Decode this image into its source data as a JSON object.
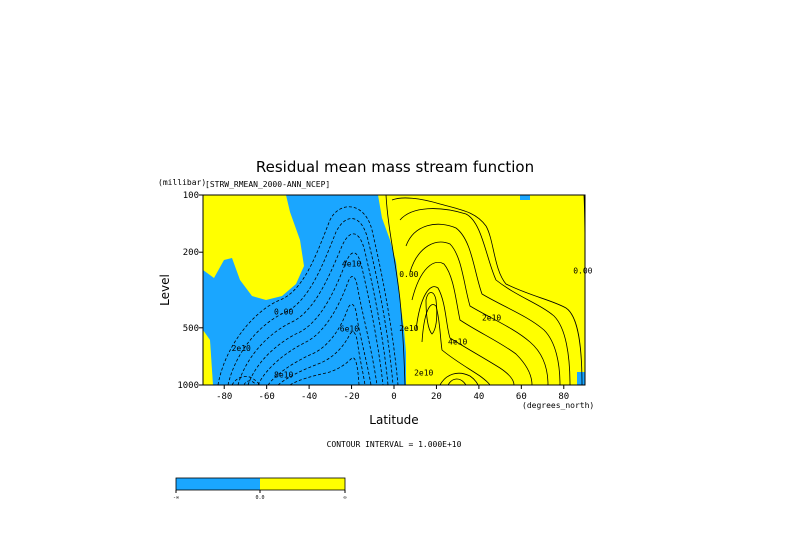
{
  "chart_data": {
    "type": "contour",
    "title": "Residual mean mass stream function",
    "subtitle": "[STRW_RMEAN_2000-ANN_NCEP]",
    "xlabel": "Latitude",
    "ylabel": "Level",
    "x_unit": "(degrees_north)",
    "y_unit": "(millibar)",
    "x_ticks": [
      -80,
      -60,
      -40,
      -20,
      0,
      20,
      40,
      60,
      80
    ],
    "x_tick_labels": [
      "-80",
      "-60",
      "-40",
      "-20",
      "0",
      "20",
      "40",
      "60",
      "80"
    ],
    "y_ticks": [
      100,
      200,
      500,
      1000
    ],
    "y_tick_labels": [
      "100",
      "200",
      "500",
      "1000"
    ],
    "xlim": [
      -90,
      90
    ],
    "ylim": [
      1000,
      100
    ],
    "y_scale": "log",
    "contour_interval_text": "CONTOUR INTERVAL = 1.000E+10",
    "contour_labels": [
      {
        "text": "0.00",
        "lat": -52,
        "p": 410
      },
      {
        "text": "4e10",
        "lat": -20,
        "p": 230
      },
      {
        "text": "6e10",
        "lat": -21,
        "p": 505
      },
      {
        "text": "2e10",
        "lat": -72,
        "p": 640
      },
      {
        "text": "8e10",
        "lat": -52,
        "p": 880
      },
      {
        "text": "0.00",
        "lat": 7,
        "p": 260
      },
      {
        "text": "2e10",
        "lat": 7,
        "p": 500
      },
      {
        "text": "2e10",
        "lat": 46,
        "p": 440
      },
      {
        "text": "4e10",
        "lat": 30,
        "p": 590
      },
      {
        "text": "2e10",
        "lat": 14,
        "p": 860
      },
      {
        "text": "0.00",
        "lat": 89,
        "p": 250
      }
    ],
    "fill_colors": {
      "negative": "#1aa6ff",
      "positive": "#ffff00"
    },
    "colorbar": {
      "labels": [
        "-∞",
        "0.0",
        "∞"
      ],
      "colors": [
        "#1aa6ff",
        "#ffff00"
      ]
    }
  }
}
